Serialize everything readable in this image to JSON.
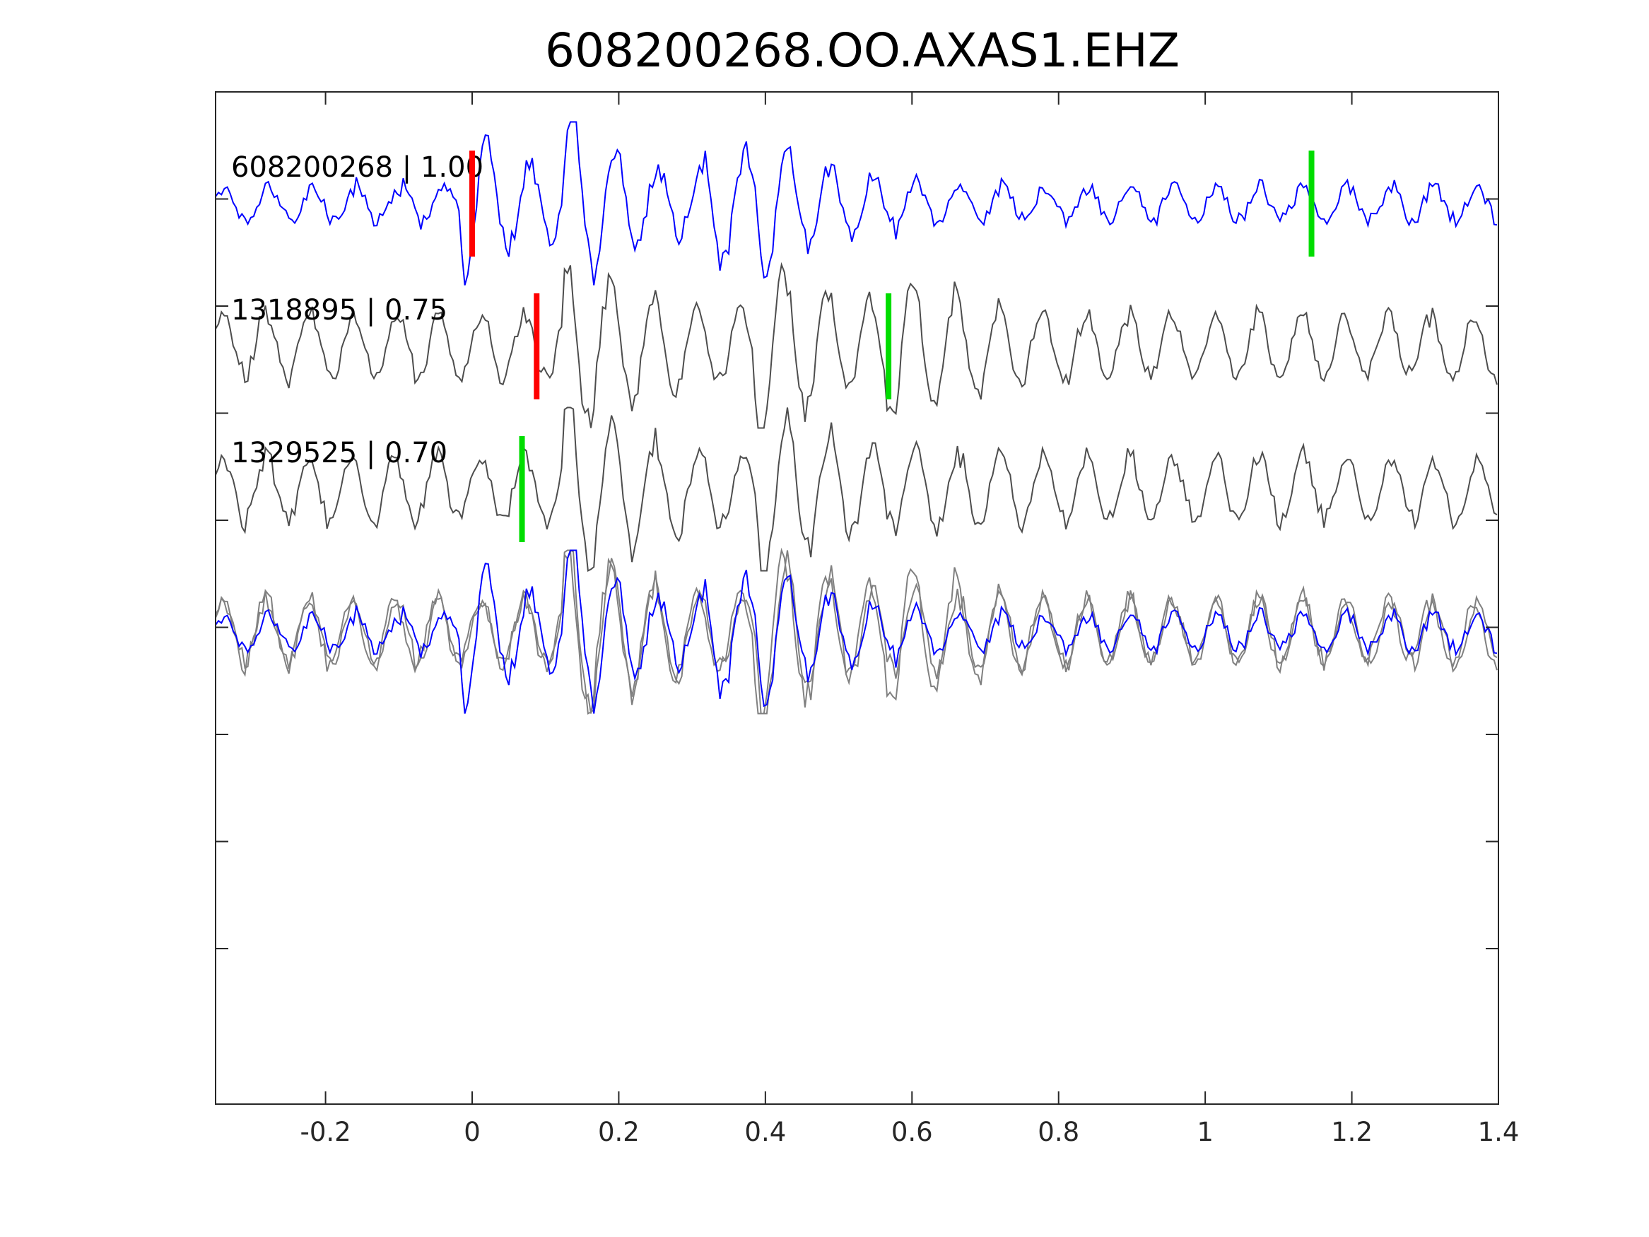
{
  "chart_data": {
    "type": "line",
    "title": "608200268.OO.AXAS1.EHZ",
    "xlabel": "",
    "ylabel": "",
    "xlim": [
      -0.35,
      1.4
    ],
    "x_ticks": [
      -0.2,
      0,
      0.2,
      0.4,
      0.6,
      0.8,
      1,
      1.2,
      1.4
    ],
    "x_tick_labels": [
      "-0.2",
      "0",
      "0.2",
      "0.4",
      "0.6",
      "0.8",
      "1",
      "1.2",
      "1.4"
    ],
    "y_tick_count": 9,
    "y_tick_labels_shown": false,
    "grid": false,
    "colors": {
      "master_trace": "#0000ff",
      "other_trace": "#4d4d4d",
      "overlay_trace": "#808080",
      "p_pick": "#ff0000",
      "s_pick": "#00dd00"
    },
    "traces": [
      {
        "label": "608200268 | 1.00",
        "color": "#0000ff",
        "events": [
          {
            "t": 0.0,
            "amp": 1.0,
            "freq": 15
          },
          {
            "t": 0.14,
            "amp": 1.05,
            "freq": 16
          },
          {
            "t": 0.33,
            "amp": 0.7,
            "freq": 17
          },
          {
            "t": 0.4,
            "amp": 0.55,
            "freq": 15
          }
        ],
        "noise": 0.28,
        "picks": [
          {
            "phase": "P",
            "time": 0.0,
            "color": "#ff0000"
          },
          {
            "phase": "S",
            "time": 1.145,
            "color": "#00dd00"
          }
        ]
      },
      {
        "label": "1318895 | 0.75",
        "color": "#4d4d4d",
        "events": [
          {
            "t": 0.14,
            "amp": 1.05,
            "freq": 16
          },
          {
            "t": 0.4,
            "amp": 0.95,
            "freq": 17
          },
          {
            "t": 0.58,
            "amp": 0.75,
            "freq": 17
          }
        ],
        "noise": 0.55,
        "picks": [
          {
            "phase": "P",
            "time": 0.088,
            "color": "#ff0000"
          },
          {
            "phase": "S",
            "time": 0.568,
            "color": "#00dd00"
          }
        ]
      },
      {
        "label": "1329525 | 0.70",
        "color": "#4d4d4d",
        "events": [
          {
            "t": 0.14,
            "amp": 1.0,
            "freq": 16
          },
          {
            "t": 0.4,
            "amp": 0.9,
            "freq": 17
          }
        ],
        "noise": 0.55,
        "picks": [
          {
            "phase": "S",
            "time": 0.068,
            "color": "#00dd00"
          }
        ]
      }
    ],
    "overlay": {
      "description_traces": [
        "608200268 | 1.00",
        "1318895 | 0.75",
        "1329525 | 0.70"
      ],
      "colors": [
        "#808080",
        "#808080",
        "#0000ff"
      ]
    }
  }
}
